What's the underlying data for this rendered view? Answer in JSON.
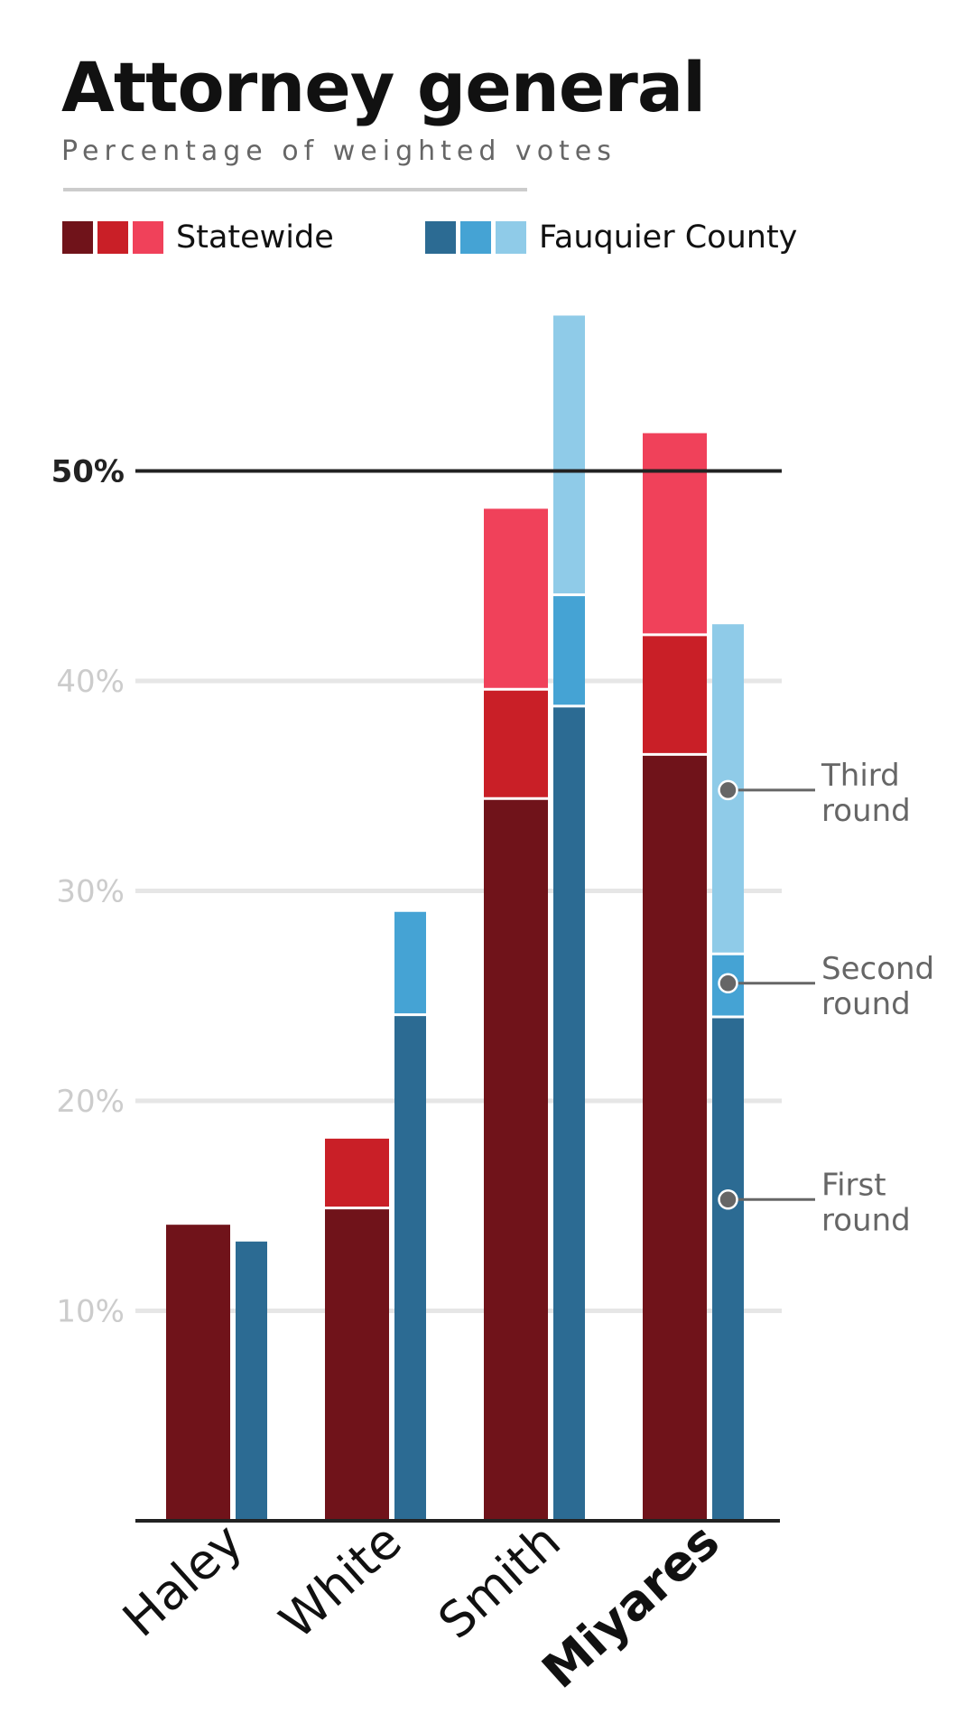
{
  "colors": {
    "statewide": [
      "#70131a",
      "#c91f27",
      "#f0415a"
    ],
    "fauquier": [
      "#2c6b93",
      "#45a3d4",
      "#8fcbe8"
    ],
    "grid": "#e6e6e6",
    "axis": "#222222",
    "tick_label": "#cccccc",
    "annotation": "#666666"
  },
  "chart_data": {
    "type": "bar",
    "stacked": true,
    "title": "Attorney general",
    "subtitle": "Percentage of weighted votes",
    "categories": [
      "Haley",
      "White",
      "Smith",
      "Miyares"
    ],
    "highlight_category": "Miyares",
    "ylim": [
      0,
      63
    ],
    "yticks": [
      {
        "value": 10,
        "label": "10%",
        "bold": false
      },
      {
        "value": 20,
        "label": "20%",
        "bold": false
      },
      {
        "value": 30,
        "label": "30%",
        "bold": false
      },
      {
        "value": 40,
        "label": "40%",
        "bold": false
      },
      {
        "value": 50,
        "label": "50%",
        "bold": true
      }
    ],
    "legend": [
      {
        "name": "Statewide",
        "color_key": "statewide"
      },
      {
        "name": "Fauquier County",
        "color_key": "fauquier"
      }
    ],
    "series": [
      {
        "name": "Statewide",
        "color_key": "statewide",
        "rounds": [
          [
            14.1,
            14.9,
            34.4,
            36.5
          ],
          [
            0,
            3.3,
            5.2,
            5.7
          ],
          [
            0,
            0,
            8.6,
            9.6
          ]
        ]
      },
      {
        "name": "Fauquier County",
        "color_key": "fauquier",
        "rounds": [
          [
            13.3,
            24.1,
            38.8,
            24.0
          ],
          [
            0,
            4.9,
            5.3,
            3.0
          ],
          [
            0,
            0,
            13.3,
            15.7
          ]
        ]
      }
    ],
    "annotations": [
      {
        "lines": [
          "Third",
          "round"
        ],
        "category": "Miyares",
        "series": "Fauquier County",
        "value": 34.8
      },
      {
        "lines": [
          "Second",
          "round"
        ],
        "category": "Miyares",
        "series": "Fauquier County",
        "value": 25.6
      },
      {
        "lines": [
          "First",
          "round"
        ],
        "category": "Miyares",
        "series": "Fauquier County",
        "value": 15.3
      }
    ]
  }
}
